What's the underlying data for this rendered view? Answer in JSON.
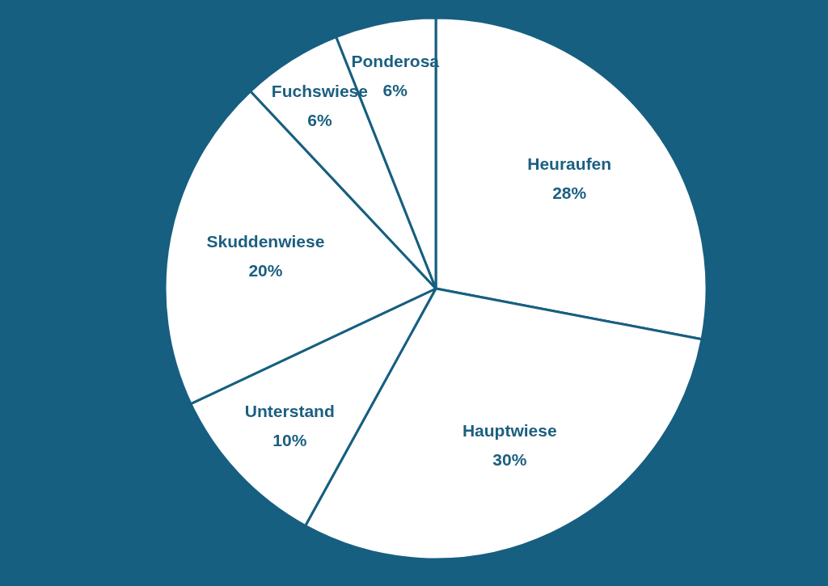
{
  "chart_data": {
    "type": "pie",
    "categories": [
      "Heuraufen",
      "Hauptwiese",
      "Unterstand",
      "Skuddenwiese",
      "Fuchswiese",
      "Ponderosa"
    ],
    "values": [
      28,
      30,
      10,
      20,
      6,
      6
    ],
    "colors": [
      "#ffffff",
      "#ffffff",
      "#ffffff",
      "#ffffff",
      "#ffffff",
      "#ffffff"
    ],
    "value_labels": [
      "28%",
      "30%",
      "10%",
      "20%",
      "6%",
      "6%"
    ]
  }
}
